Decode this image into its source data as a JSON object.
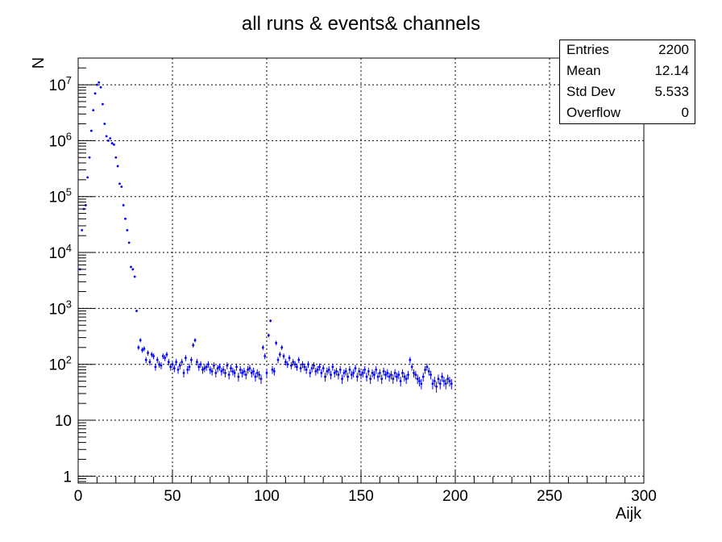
{
  "chart_data": {
    "type": "scatter",
    "title": "all runs & events& channels",
    "xlabel": "Aijk",
    "ylabel": "N",
    "xlim": [
      0,
      300
    ],
    "ylim": [
      0.75,
      30000000
    ],
    "yscale": "log",
    "grid": true,
    "x_ticks": [
      "0",
      "50",
      "100",
      "150",
      "200",
      "250",
      "300"
    ],
    "y_ticks": [
      "1",
      "10",
      "10^2",
      "10^3",
      "10^4",
      "10^5",
      "10^6",
      "10^7"
    ],
    "marker_color": "#0000ff",
    "points": [
      [
        1,
        5000
      ],
      [
        2,
        25000
      ],
      [
        3,
        60000
      ],
      [
        4,
        70000
      ],
      [
        5,
        220000
      ],
      [
        6,
        500000
      ],
      [
        7,
        1500000
      ],
      [
        8,
        3500000
      ],
      [
        9,
        7000000
      ],
      [
        10,
        10000000
      ],
      [
        11,
        11000000
      ],
      [
        12,
        9000000
      ],
      [
        13,
        4500000
      ],
      [
        14,
        2000000
      ],
      [
        15,
        1200000
      ],
      [
        16,
        1000000
      ],
      [
        17,
        1100000
      ],
      [
        18,
        900000
      ],
      [
        19,
        850000
      ],
      [
        20,
        500000
      ],
      [
        21,
        350000
      ],
      [
        22,
        170000
      ],
      [
        23,
        150000
      ],
      [
        24,
        70000
      ],
      [
        25,
        40000
      ],
      [
        26,
        25000
      ],
      [
        27,
        15000
      ],
      [
        28,
        5500
      ],
      [
        29,
        5000
      ],
      [
        30,
        3700
      ],
      [
        31,
        900
      ],
      [
        32,
        200
      ],
      [
        33,
        270
      ],
      [
        34,
        180
      ],
      [
        35,
        190
      ],
      [
        36,
        120
      ],
      [
        37,
        160
      ],
      [
        38,
        110
      ],
      [
        39,
        150
      ],
      [
        40,
        140
      ],
      [
        41,
        90
      ],
      [
        42,
        120
      ],
      [
        43,
        100
      ],
      [
        44,
        95
      ],
      [
        45,
        140
      ],
      [
        46,
        130
      ],
      [
        47,
        150
      ],
      [
        48,
        110
      ],
      [
        49,
        90
      ],
      [
        50,
        100
      ],
      [
        51,
        85
      ],
      [
        52,
        110
      ],
      [
        53,
        80
      ],
      [
        54,
        95
      ],
      [
        55,
        110
      ],
      [
        56,
        70
      ],
      [
        57,
        130
      ],
      [
        58,
        80
      ],
      [
        59,
        90
      ],
      [
        60,
        120
      ],
      [
        61,
        220
      ],
      [
        62,
        270
      ],
      [
        63,
        110
      ],
      [
        64,
        90
      ],
      [
        65,
        100
      ],
      [
        66,
        80
      ],
      [
        67,
        85
      ],
      [
        68,
        90
      ],
      [
        69,
        100
      ],
      [
        70,
        80
      ],
      [
        71,
        75
      ],
      [
        72,
        95
      ],
      [
        73,
        70
      ],
      [
        74,
        85
      ],
      [
        75,
        90
      ],
      [
        76,
        75
      ],
      [
        77,
        80
      ],
      [
        78,
        70
      ],
      [
        79,
        95
      ],
      [
        80,
        65
      ],
      [
        81,
        85
      ],
      [
        82,
        75
      ],
      [
        83,
        70
      ],
      [
        84,
        90
      ],
      [
        85,
        60
      ],
      [
        86,
        80
      ],
      [
        87,
        70
      ],
      [
        88,
        75
      ],
      [
        89,
        65
      ],
      [
        90,
        80
      ],
      [
        91,
        85
      ],
      [
        92,
        70
      ],
      [
        93,
        75
      ],
      [
        94,
        60
      ],
      [
        95,
        70
      ],
      [
        96,
        65
      ],
      [
        97,
        55
      ],
      [
        98,
        200
      ],
      [
        99,
        140
      ],
      [
        100,
        70
      ],
      [
        101,
        330
      ],
      [
        102,
        600
      ],
      [
        103,
        80
      ],
      [
        104,
        75
      ],
      [
        105,
        240
      ],
      [
        106,
        120
      ],
      [
        107,
        150
      ],
      [
        108,
        200
      ],
      [
        109,
        140
      ],
      [
        110,
        110
      ],
      [
        111,
        100
      ],
      [
        112,
        130
      ],
      [
        113,
        95
      ],
      [
        114,
        110
      ],
      [
        115,
        100
      ],
      [
        116,
        90
      ],
      [
        117,
        120
      ],
      [
        118,
        85
      ],
      [
        119,
        100
      ],
      [
        120,
        90
      ],
      [
        121,
        80
      ],
      [
        122,
        100
      ],
      [
        123,
        70
      ],
      [
        124,
        85
      ],
      [
        125,
        95
      ],
      [
        126,
        75
      ],
      [
        127,
        80
      ],
      [
        128,
        90
      ],
      [
        129,
        70
      ],
      [
        130,
        85
      ],
      [
        131,
        60
      ],
      [
        132,
        75
      ],
      [
        133,
        80
      ],
      [
        134,
        65
      ],
      [
        135,
        90
      ],
      [
        136,
        70
      ],
      [
        137,
        75
      ],
      [
        138,
        65
      ],
      [
        139,
        80
      ],
      [
        140,
        55
      ],
      [
        141,
        70
      ],
      [
        142,
        75
      ],
      [
        143,
        60
      ],
      [
        144,
        80
      ],
      [
        145,
        65
      ],
      [
        146,
        70
      ],
      [
        147,
        85
      ],
      [
        148,
        60
      ],
      [
        149,
        75
      ],
      [
        150,
        65
      ],
      [
        151,
        70
      ],
      [
        152,
        80
      ],
      [
        153,
        60
      ],
      [
        154,
        75
      ],
      [
        155,
        55
      ],
      [
        156,
        70
      ],
      [
        157,
        65
      ],
      [
        158,
        80
      ],
      [
        159,
        60
      ],
      [
        160,
        70
      ],
      [
        161,
        55
      ],
      [
        162,
        75
      ],
      [
        163,
        65
      ],
      [
        164,
        70
      ],
      [
        165,
        60
      ],
      [
        166,
        65
      ],
      [
        167,
        55
      ],
      [
        168,
        70
      ],
      [
        169,
        60
      ],
      [
        170,
        65
      ],
      [
        171,
        50
      ],
      [
        172,
        70
      ],
      [
        173,
        60
      ],
      [
        174,
        55
      ],
      [
        175,
        65
      ],
      [
        176,
        120
      ],
      [
        177,
        90
      ],
      [
        178,
        70
      ],
      [
        179,
        65
      ],
      [
        180,
        55
      ],
      [
        181,
        50
      ],
      [
        182,
        45
      ],
      [
        183,
        60
      ],
      [
        184,
        80
      ],
      [
        185,
        90
      ],
      [
        186,
        75
      ],
      [
        187,
        65
      ],
      [
        188,
        45
      ],
      [
        189,
        50
      ],
      [
        190,
        40
      ],
      [
        191,
        55
      ],
      [
        192,
        45
      ],
      [
        193,
        60
      ],
      [
        194,
        50
      ],
      [
        195,
        45
      ],
      [
        196,
        55
      ],
      [
        197,
        50
      ],
      [
        198,
        45
      ]
    ]
  },
  "stats": [
    {
      "key": "Entries",
      "value": "2200"
    },
    {
      "key": "Mean",
      "value": "12.14"
    },
    {
      "key": "Std Dev",
      "value": "5.533"
    },
    {
      "key": "Overflow",
      "value": "0"
    }
  ]
}
